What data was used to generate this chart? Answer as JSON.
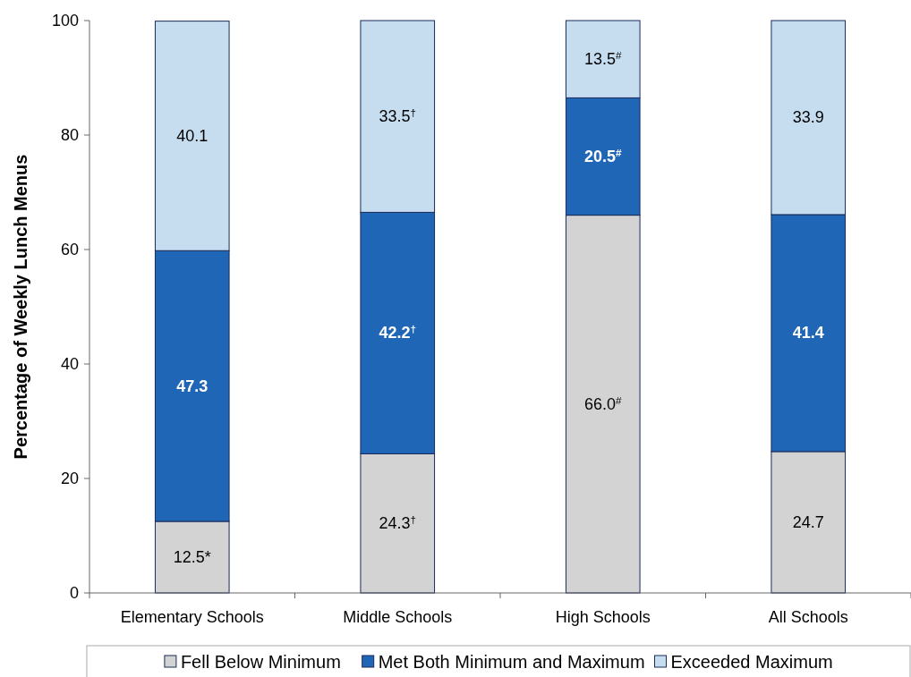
{
  "chart_data": {
    "type": "bar",
    "stacked": true,
    "ylabel": "Percentage of Weekly Lunch Menus",
    "categories": [
      "Elementary Schools",
      "Middle Schools",
      "High Schools",
      "All Schools"
    ],
    "ylim": [
      0,
      100
    ],
    "yticks": [
      0,
      20,
      40,
      60,
      80,
      100
    ],
    "grid": false,
    "legend": "bottom",
    "series": [
      {
        "name": "Fell Below Minimum",
        "color": "#d3d3d3",
        "values": [
          12.5,
          24.3,
          66.0,
          24.7
        ],
        "value_labels": [
          "12.5*",
          "24.3$^{†}$",
          "66.0$^{#}$",
          "24.7"
        ]
      },
      {
        "name": "Met Both Minimum and Maximum",
        "color": "#2066b6",
        "values": [
          47.3,
          42.2,
          20.5,
          41.4
        ],
        "value_labels": [
          "47.3",
          "42.2$^{†}$",
          "20.5$^{#}$",
          "41.4"
        ]
      },
      {
        "name": "Exceeded Maximum",
        "color": "#c6ddf0",
        "values": [
          40.1,
          33.5,
          13.5,
          33.9
        ],
        "value_labels": [
          "40.1",
          "33.5$^{†}$",
          "13.5$^{#}$",
          "33.9"
        ]
      }
    ]
  }
}
